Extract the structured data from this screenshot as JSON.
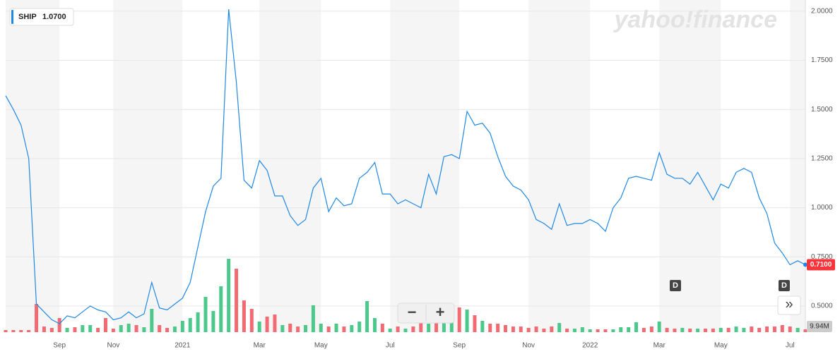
{
  "chart_data": {
    "type": "line",
    "symbol": "SHIP",
    "legend_value": "1.0700",
    "brand": "yahoo!finance",
    "categories": [
      null,
      null,
      null,
      null,
      null,
      null,
      null,
      "Sep",
      null,
      null,
      null,
      null,
      null,
      null,
      "Nov",
      null,
      null,
      null,
      null,
      null,
      null,
      null,
      null,
      "2021",
      null,
      null,
      null,
      null,
      null,
      null,
      null,
      null,
      null,
      "Mar",
      null,
      null,
      null,
      null,
      null,
      null,
      null,
      "May",
      null,
      null,
      null,
      null,
      null,
      null,
      null,
      null,
      "Jul",
      null,
      null,
      null,
      null,
      null,
      null,
      null,
      null,
      "Sep",
      null,
      null,
      null,
      null,
      null,
      null,
      null,
      null,
      "Nov",
      null,
      null,
      null,
      null,
      null,
      null,
      null,
      "2022",
      null,
      null,
      null,
      null,
      null,
      null,
      null,
      null,
      "Mar",
      null,
      null,
      null,
      null,
      null,
      null,
      null,
      "May",
      null,
      null,
      null,
      null,
      null,
      null,
      null,
      null,
      "Jul",
      null,
      null
    ],
    "series": [
      {
        "name": "SHIP",
        "color": "#1e88e5",
        "values": [
          1.57,
          1.5,
          1.42,
          1.25,
          0.51,
          0.47,
          0.43,
          0.41,
          0.45,
          0.44,
          0.47,
          0.5,
          0.48,
          0.47,
          0.43,
          0.44,
          0.47,
          0.44,
          0.46,
          0.62,
          0.49,
          0.48,
          0.51,
          0.54,
          0.62,
          0.8,
          0.98,
          1.11,
          1.15,
          2.01,
          1.64,
          1.14,
          1.1,
          1.24,
          1.19,
          1.06,
          1.06,
          0.96,
          0.91,
          0.94,
          1.1,
          1.15,
          0.98,
          1.05,
          1.01,
          1.02,
          1.15,
          1.18,
          1.23,
          1.07,
          1.07,
          1.02,
          1.04,
          1.02,
          1.0,
          1.17,
          1.07,
          1.26,
          1.27,
          1.25,
          1.49,
          1.42,
          1.43,
          1.38,
          1.26,
          1.16,
          1.11,
          1.09,
          1.04,
          0.94,
          0.92,
          0.89,
          1.02,
          0.91,
          0.92,
          0.92,
          0.94,
          0.92,
          0.88,
          1.0,
          1.05,
          1.15,
          1.16,
          1.15,
          1.14,
          1.28,
          1.17,
          1.15,
          1.15,
          1.12,
          1.18,
          1.11,
          1.04,
          1.12,
          1.1,
          1.18,
          1.2,
          1.18,
          1.05,
          0.97,
          0.82,
          0.77,
          0.71,
          0.73,
          0.71
        ]
      }
    ],
    "volume_values": [
      7.5,
      7.5,
      7.5,
      7.5,
      100,
      20,
      15,
      50,
      15,
      17.5,
      25,
      25,
      15,
      50,
      12.5,
      25,
      30,
      25,
      17.5,
      82.5,
      25,
      15,
      20,
      40,
      50,
      70,
      125,
      75,
      162.5,
      260,
      225,
      112.5,
      82.5,
      37.5,
      55,
      62.5,
      25,
      30,
      20,
      25,
      95,
      30,
      20,
      30,
      20,
      25,
      37.5,
      110,
      50,
      30,
      12.5,
      20,
      12.5,
      20,
      50,
      30,
      55,
      37.5,
      95,
      87.5,
      80,
      60,
      40,
      30,
      30,
      25,
      20,
      20,
      15,
      20,
      12.5,
      20,
      32.5,
      12.5,
      12.5,
      17.5,
      10,
      10,
      10,
      10,
      17.5,
      17.5,
      35,
      15,
      20,
      37.5,
      15,
      12.5,
      15,
      12.5,
      12.5,
      12.5,
      12.5,
      15,
      15,
      20,
      15,
      20,
      15,
      20,
      20,
      25,
      20,
      15,
      9.94
    ],
    "volume_label": "9.94M",
    "up_color": "#4cc98a",
    "down_color": "#f26b73",
    "last_price": 0.71,
    "last_price_label": "0.7100",
    "events": [
      "D",
      "D"
    ],
    "controls": {
      "zoom_out": "−",
      "zoom_in": "+",
      "more": "»"
    },
    "ylim": [
      0.367,
      2.039
    ],
    "yticks": [
      {
        "value": 0.5,
        "label": "0.5000"
      },
      {
        "value": 0.75,
        "label": "0.7500"
      },
      {
        "value": 1.0,
        "label": "1.0000"
      },
      {
        "value": 1.25,
        "label": "1.2500"
      },
      {
        "value": 1.5,
        "label": "1.5000"
      },
      {
        "value": 1.75,
        "label": "1.7500"
      },
      {
        "value": 2.0,
        "label": "2.0000"
      }
    ],
    "grid": true
  }
}
